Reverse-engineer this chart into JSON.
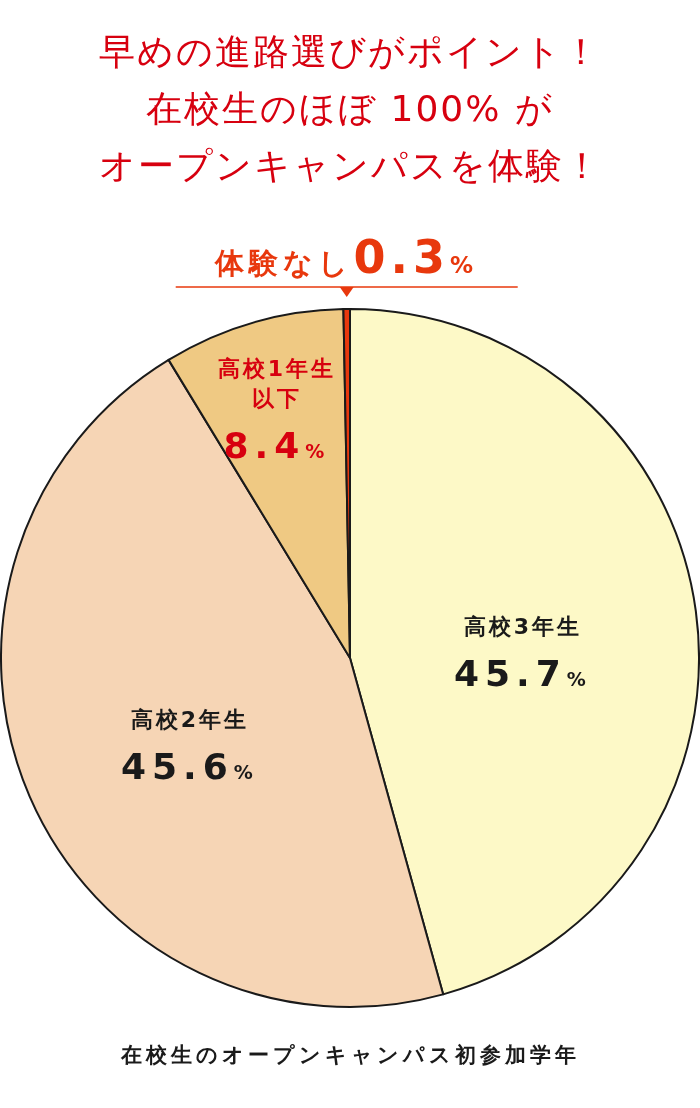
{
  "chart_data": {
    "type": "pie",
    "title": "早めの進路選びがポイント！在校生のほぼ 100% がオープンキャンパスを体験！",
    "categories": [
      "高校3年生",
      "高校2年生",
      "高校1年生以下",
      "体験なし"
    ],
    "values": [
      45.7,
      45.6,
      8.4,
      0.3
    ],
    "colors": [
      "#fdf9c7",
      "#f6d5b5",
      "#efc983",
      "#e8380d"
    ],
    "value_labels": [
      "45.7%",
      "45.6%",
      "8.4%",
      "0.3%"
    ],
    "annotations": [
      "在校生のオープンキャンパス初参加学年"
    ]
  }
}
